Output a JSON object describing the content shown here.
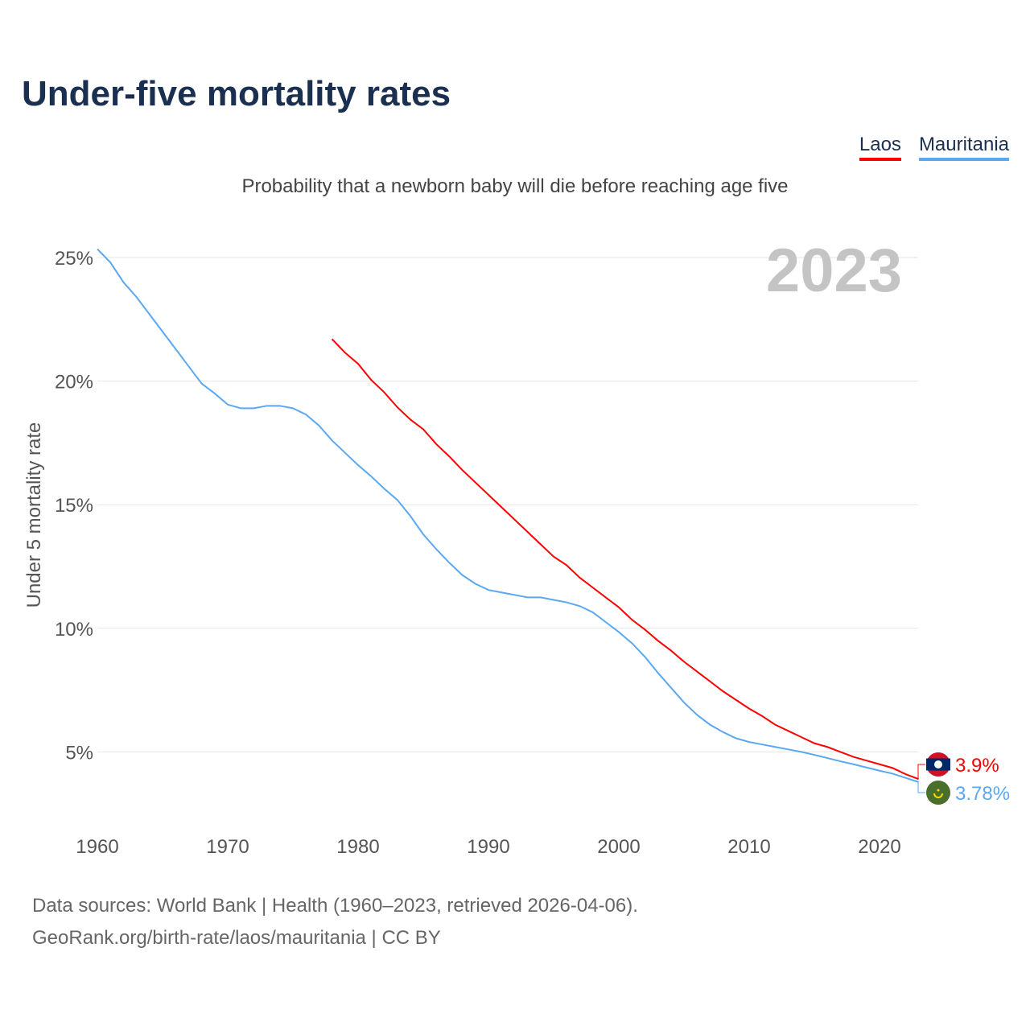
{
  "title": "Under-five mortality rates",
  "subtitle": "Probability that a newborn baby will die before reaching age five",
  "legend": [
    {
      "name": "Laos",
      "color": "#ff0000"
    },
    {
      "name": "Mauritania",
      "color": "#5ba8f0"
    }
  ],
  "year_label": "2023",
  "source_line1": "Data sources: World Bank | Health (1960–2023, retrieved 2026-04-06).",
  "source_line2": "GeoRank.org/birth-rate/laos/mauritania | CC BY",
  "chart_data": {
    "type": "line",
    "title": "Under-five mortality rates",
    "xlabel": "",
    "ylabel": "Under 5 mortality rate",
    "xlim": [
      1960,
      2023
    ],
    "ylim": [
      0,
      26
    ],
    "xticks": [
      1960,
      1970,
      1980,
      1990,
      2000,
      2010,
      2020
    ],
    "yticks": [
      5,
      10,
      15,
      20,
      25
    ],
    "ytick_labels": [
      "5%",
      "10%",
      "15%",
      "20%",
      "25%"
    ],
    "grid": true,
    "series": [
      {
        "name": "Laos",
        "color": "#ff0000",
        "start_year": 1978,
        "end_label": "3.9%",
        "flag": "laos-flag",
        "values": [
          21.7,
          21.15,
          20.7,
          20.05,
          19.55,
          18.95,
          18.45,
          18.05,
          17.45,
          16.95,
          16.4,
          15.9,
          15.4,
          14.9,
          14.4,
          13.9,
          13.4,
          12.9,
          12.55,
          12.05,
          11.65,
          11.25,
          10.85,
          10.35,
          9.95,
          9.5,
          9.1,
          8.65,
          8.25,
          7.85,
          7.45,
          7.1,
          6.75,
          6.45,
          6.1,
          5.85,
          5.6,
          5.35,
          5.2,
          5.0,
          4.8,
          4.65,
          4.5,
          4.35,
          4.1,
          3.9
        ]
      },
      {
        "name": "Mauritania",
        "color": "#5ba8f0",
        "start_year": 1960,
        "end_label": "3.78%",
        "flag": "mauritania-flag",
        "values": [
          25.34,
          24.8,
          24.0,
          23.4,
          22.7,
          22.0,
          21.3,
          20.6,
          19.9,
          19.5,
          19.05,
          18.9,
          18.9,
          19.0,
          19.0,
          18.9,
          18.65,
          18.2,
          17.6,
          17.1,
          16.6,
          16.15,
          15.65,
          15.2,
          14.55,
          13.8,
          13.2,
          12.65,
          12.15,
          11.8,
          11.55,
          11.45,
          11.35,
          11.25,
          11.25,
          11.15,
          11.05,
          10.9,
          10.65,
          10.25,
          9.85,
          9.4,
          8.85,
          8.2,
          7.6,
          7.0,
          6.5,
          6.1,
          5.8,
          5.55,
          5.4,
          5.3,
          5.2,
          5.1,
          5.0,
          4.88,
          4.75,
          4.62,
          4.5,
          4.37,
          4.24,
          4.12,
          3.95,
          3.78
        ]
      }
    ]
  }
}
